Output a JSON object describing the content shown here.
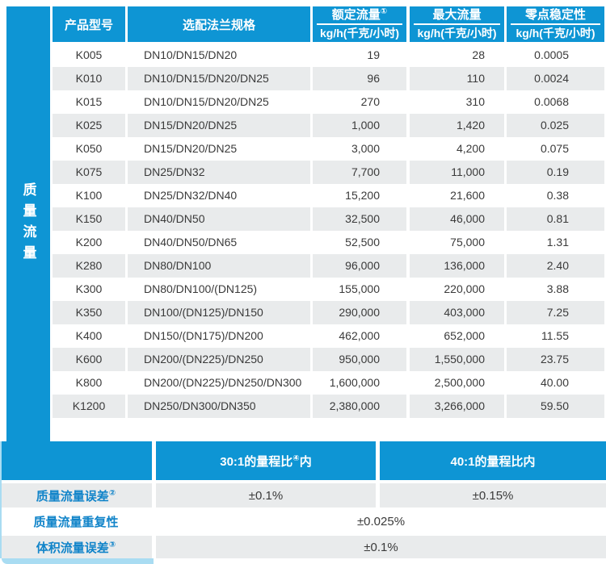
{
  "colors": {
    "primary_blue": "#0e95d4",
    "row_alt": "#e9ebec",
    "text_dark": "#3a3a3a",
    "label_blue": "#1184c9",
    "accent_light_blue": "#a9dcf2"
  },
  "sidebar": {
    "label": "质量流量"
  },
  "table": {
    "headers": {
      "model": "产品型号",
      "flange": "选配法兰规格",
      "rated": {
        "title": "额定流量",
        "sup": "①",
        "unit": "kg/h(千克/小时)"
      },
      "max": {
        "title": "最大流量",
        "sup": "",
        "unit": "kg/h(千克/小时)"
      },
      "zero": {
        "title": "零点稳定性",
        "sup": "",
        "unit": "kg/h(千克/小时)"
      }
    },
    "rows": [
      {
        "model": "K005",
        "flange": "DN10/DN15/DN20",
        "rated": "19",
        "max": "28",
        "zero": "0.0005"
      },
      {
        "model": "K010",
        "flange": "DN10/DN15/DN20/DN25",
        "rated": "96",
        "max": "110",
        "zero": "0.0024"
      },
      {
        "model": "K015",
        "flange": "DN10/DN15/DN20/DN25",
        "rated": "270",
        "max": "310",
        "zero": "0.0068"
      },
      {
        "model": "K025",
        "flange": "DN15/DN20/DN25",
        "rated": "1,000",
        "max": "1,420",
        "zero": "0.025"
      },
      {
        "model": "K050",
        "flange": "DN15/DN20/DN25",
        "rated": "3,000",
        "max": "4,200",
        "zero": "0.075"
      },
      {
        "model": "K075",
        "flange": "DN25/DN32",
        "rated": "7,700",
        "max": "11,000",
        "zero": "0.19"
      },
      {
        "model": "K100",
        "flange": "DN25/DN32/DN40",
        "rated": "15,200",
        "max": "21,600",
        "zero": "0.38"
      },
      {
        "model": "K150",
        "flange": "DN40/DN50",
        "rated": "32,500",
        "max": "46,000",
        "zero": "0.81"
      },
      {
        "model": "K200",
        "flange": "DN40/DN50/DN65",
        "rated": "52,500",
        "max": "75,000",
        "zero": "1.31"
      },
      {
        "model": "K280",
        "flange": "DN80/DN100",
        "rated": "96,000",
        "max": "136,000",
        "zero": "2.40"
      },
      {
        "model": "K300",
        "flange": "DN80/DN100/(DN125)",
        "rated": "155,000",
        "max": "220,000",
        "zero": "3.88"
      },
      {
        "model": "K350",
        "flange": "DN100/(DN125)/DN150",
        "rated": "290,000",
        "max": "403,000",
        "zero": "7.25"
      },
      {
        "model": "K400",
        "flange": "DN150/(DN175)/DN200",
        "rated": "462,000",
        "max": "652,000",
        "zero": "11.55"
      },
      {
        "model": "K600",
        "flange": "DN200/(DN225)/DN250",
        "rated": "950,000",
        "max": "1,550,000",
        "zero": "23.75"
      },
      {
        "model": "K800",
        "flange": "DN200/(DN225)/DN250/DN300",
        "rated": "1,600,000",
        "max": "2,500,000",
        "zero": "40.00"
      },
      {
        "model": "K1200",
        "flange": "DN250/DN300/DN350",
        "rated": "2,380,000",
        "max": "3,266,000",
        "zero": "59.50"
      }
    ]
  },
  "accuracy": {
    "header": {
      "col1": {
        "text": "30:1的量程比",
        "sup": "④",
        "suffix": "内"
      },
      "col2": {
        "text": "40:1的量程比内"
      }
    },
    "rows": [
      {
        "label": "质量流量误差",
        "sup": "②",
        "values": [
          "±0.1%",
          "±0.15%"
        ]
      },
      {
        "label": "质量流量重复性",
        "sup": "",
        "values": [
          "±0.025%"
        ]
      },
      {
        "label": "体积流量误差",
        "sup": "③",
        "values": [
          "±0.1%"
        ]
      }
    ]
  }
}
